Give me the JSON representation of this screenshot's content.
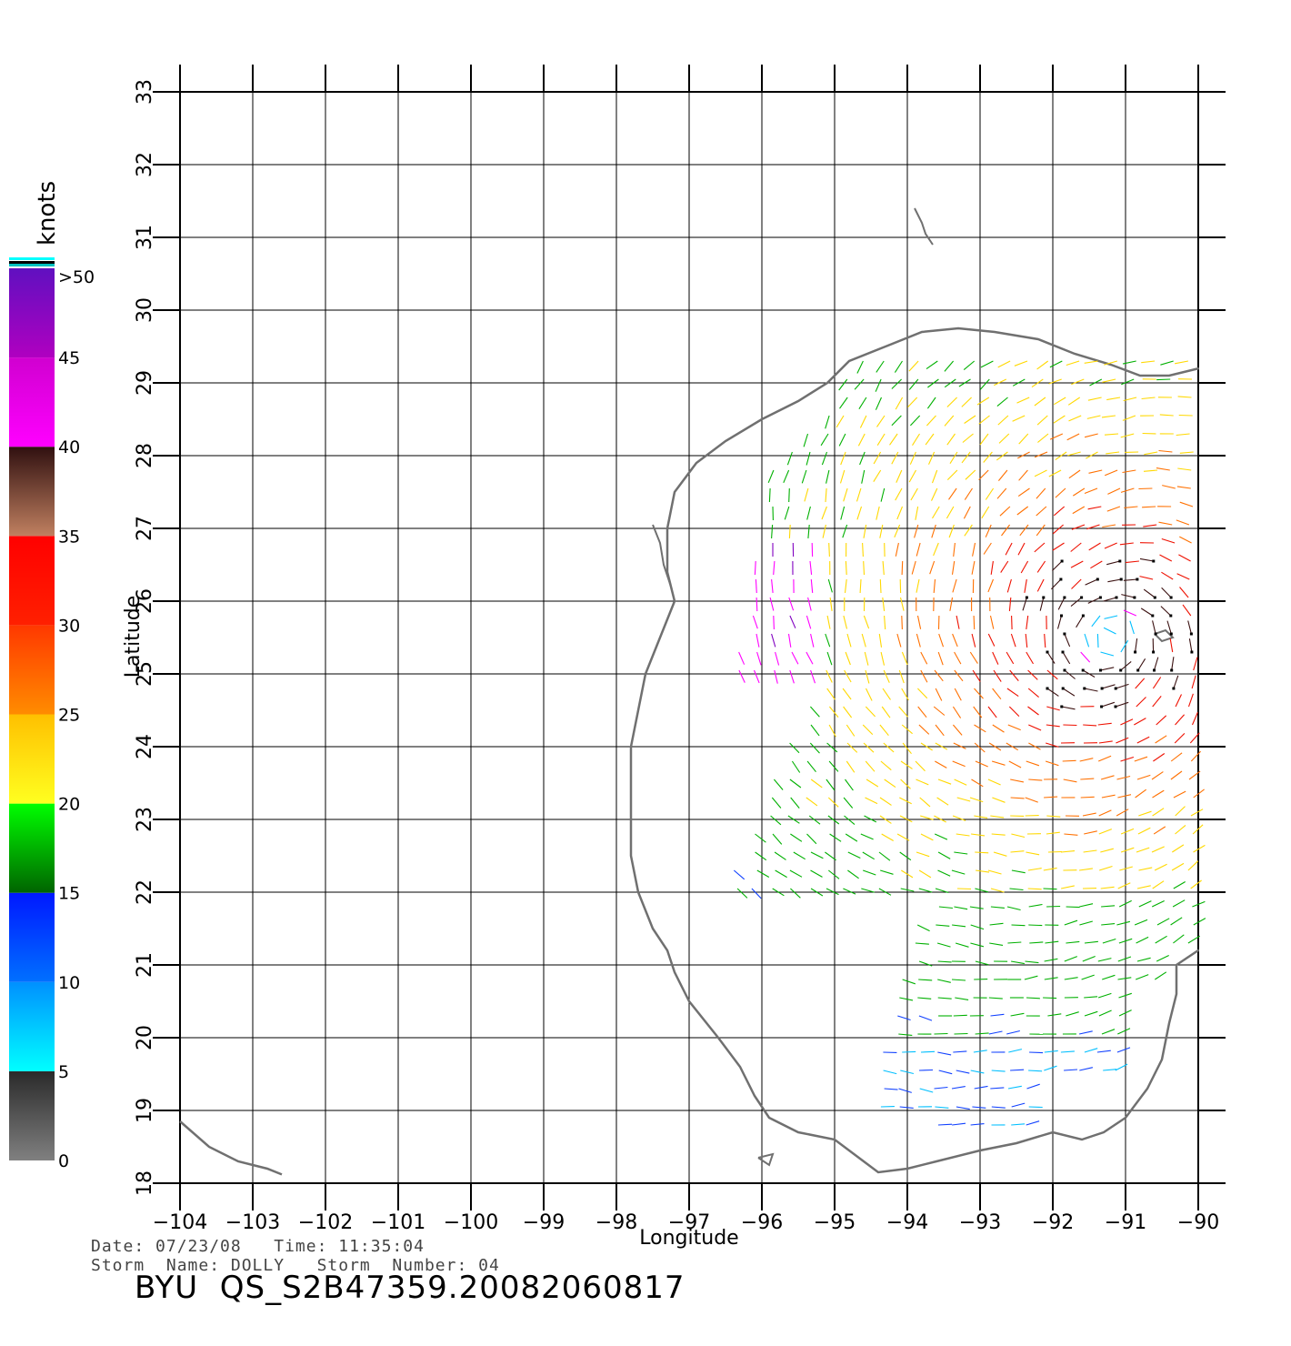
{
  "chart_data": {
    "type": "wind-vector-map",
    "xlabel": "Longitude",
    "ylabel": "Latitude",
    "xlim": [
      -104,
      -90
    ],
    "ylim": [
      18,
      33
    ],
    "x_ticks": [
      -104,
      -103,
      -102,
      -101,
      -100,
      -99,
      -98,
      -97,
      -96,
      -95,
      -94,
      -93,
      -92,
      -91,
      -90
    ],
    "y_ticks": [
      18,
      19,
      20,
      21,
      22,
      23,
      24,
      25,
      26,
      27,
      28,
      29,
      30,
      31,
      32,
      33
    ],
    "grid": true,
    "colorbar": {
      "unit": "knots",
      "tick_labels": [
        "0",
        "5",
        "10",
        "15",
        "20",
        "25",
        "30",
        "35",
        "40",
        "45",
        ">50"
      ],
      "tick_values": [
        0,
        5,
        10,
        15,
        20,
        25,
        30,
        35,
        40,
        45,
        50
      ],
      "bands": [
        {
          "range": [
            0,
            5
          ],
          "colors": [
            "#808080",
            "#2a2a2a"
          ]
        },
        {
          "range": [
            5,
            10
          ],
          "colors": [
            "#00ffff",
            "#0090ff"
          ]
        },
        {
          "range": [
            10,
            15
          ],
          "colors": [
            "#0070ff",
            "#0018ff"
          ]
        },
        {
          "range": [
            15,
            20
          ],
          "colors": [
            "#006400",
            "#00ff00"
          ]
        },
        {
          "range": [
            20,
            25
          ],
          "colors": [
            "#ffff20",
            "#ffc000"
          ]
        },
        {
          "range": [
            25,
            30
          ],
          "colors": [
            "#ff8c00",
            "#ff3800"
          ]
        },
        {
          "range": [
            30,
            35
          ],
          "colors": [
            "#ff2000",
            "#ff0000"
          ]
        },
        {
          "range": [
            35,
            40
          ],
          "colors": [
            "#c08060",
            "#301010"
          ]
        },
        {
          "range": [
            40,
            45
          ],
          "colors": [
            "#ff00ff",
            "#d000d0"
          ]
        },
        {
          "range": [
            45,
            50
          ],
          "colors": [
            "#b000c0",
            "#6010c0"
          ]
        }
      ]
    },
    "storm_center": {
      "lon": -91.2,
      "lat": 25.5
    }
  },
  "info": {
    "date_line": "Date: 07/23/08   Time: 11:35:04",
    "storm_line": "Storm  Name: DOLLY   Storm  Number: 04",
    "product": "BYU  QS_S2B47359.20082060817"
  },
  "colors": {
    "coastline": "#707070",
    "grid": "#000000"
  }
}
